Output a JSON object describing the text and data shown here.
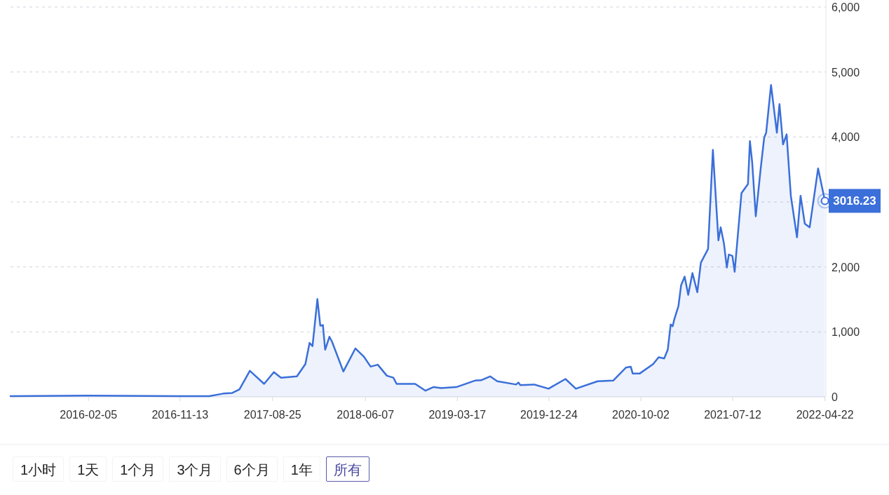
{
  "chart_data": {
    "type": "area",
    "color": "#3b6fd9",
    "x": [
      "2015-06-10",
      "2016-02-05",
      "2016-11-13",
      "2017-02-11",
      "2017-03-26",
      "2017-04-23",
      "2017-05-15",
      "2017-06-16",
      "2017-07-30",
      "2017-08-29",
      "2017-09-20",
      "2017-11-08",
      "2017-12-04",
      "2017-12-17",
      "2017-12-26",
      "2018-01-10",
      "2018-01-19",
      "2018-01-27",
      "2018-02-03",
      "2018-02-16",
      "2018-02-24",
      "2018-03-31",
      "2018-05-07",
      "2018-06-02",
      "2018-06-23",
      "2018-07-15",
      "2018-08-12",
      "2018-09-01",
      "2018-09-11",
      "2018-11-07",
      "2018-12-09",
      "2019-01-02",
      "2019-01-26",
      "2019-03-14",
      "2019-05-10",
      "2019-05-29",
      "2019-06-26",
      "2019-07-18",
      "2019-09-14",
      "2019-09-21",
      "2019-09-27",
      "2019-11-09",
      "2019-12-23",
      "2020-02-13",
      "2020-03-16",
      "2020-05-22",
      "2020-07-09",
      "2020-08-17",
      "2020-09-01",
      "2020-09-07",
      "2020-09-29",
      "2020-11-09",
      "2020-11-26",
      "2020-12-13",
      "2020-12-24",
      "2021-01-02",
      "2021-01-08",
      "2021-01-13",
      "2021-01-26",
      "2021-02-03",
      "2021-02-14",
      "2021-02-25",
      "2021-03-10",
      "2021-03-25",
      "2021-04-05",
      "2021-04-27",
      "2021-05-12",
      "2021-05-29",
      "2021-06-05",
      "2021-06-15",
      "2021-06-24",
      "2021-06-30",
      "2021-07-11",
      "2021-07-18",
      "2021-08-08",
      "2021-08-28",
      "2021-09-03",
      "2021-09-10",
      "2021-09-21",
      "2021-10-06",
      "2021-10-17",
      "2021-10-23",
      "2021-11-07",
      "2021-11-25",
      "2021-12-03",
      "2021-12-14",
      "2021-12-25",
      "2022-01-07",
      "2022-01-26",
      "2022-02-06",
      "2022-02-19",
      "2022-03-06",
      "2022-04-01",
      "2022-04-22"
    ],
    "values": [
      10,
      20,
      10,
      10,
      50,
      60,
      115,
      400,
      200,
      380,
      295,
      315,
      505,
      830,
      780,
      1505,
      1095,
      1105,
      725,
      925,
      850,
      390,
      745,
      620,
      465,
      495,
      325,
      295,
      200,
      200,
      95,
      150,
      135,
      150,
      250,
      255,
      315,
      240,
      190,
      220,
      180,
      190,
      125,
      275,
      125,
      240,
      250,
      450,
      465,
      360,
      360,
      505,
      610,
      590,
      725,
      1115,
      1085,
      1190,
      1400,
      1715,
      1850,
      1570,
      1905,
      1610,
      2065,
      2275,
      3800,
      2410,
      2610,
      2360,
      1990,
      2190,
      2170,
      1925,
      3135,
      3275,
      3935,
      3610,
      2780,
      3505,
      3990,
      4065,
      4800,
      4065,
      4505,
      3885,
      4040,
      3095,
      2455,
      3095,
      2665,
      2610,
      3515,
      3016.23
    ],
    "xlim": [
      "2015-06-10",
      "2022-04-25"
    ],
    "xticks": [
      "2016-02-05",
      "2016-11-13",
      "2017-08-25",
      "2018-06-07",
      "2019-03-17",
      "2019-12-24",
      "2020-10-02",
      "2021-07-12",
      "2022-04-22"
    ],
    "ylim": [
      0,
      6000
    ],
    "yticks": [
      0,
      {
        "value": 1000,
        "label": "1,000"
      },
      {
        "value": 2000,
        "label": "2,000"
      },
      {
        "value": 3000,
        "label": null
      },
      {
        "value": 4000,
        "label": "4,000"
      },
      {
        "value": 5000,
        "label": "5,000"
      },
      {
        "value": 6000,
        "label": "6,000"
      }
    ],
    "grid": "y",
    "annotations": [
      {
        "text": "3016.23",
        "x": "2022-04-22",
        "y": 3016.23
      },
      "1小时",
      "1天",
      "1个月",
      "3个月",
      "6个月",
      "1年",
      "所有"
    ]
  }
}
